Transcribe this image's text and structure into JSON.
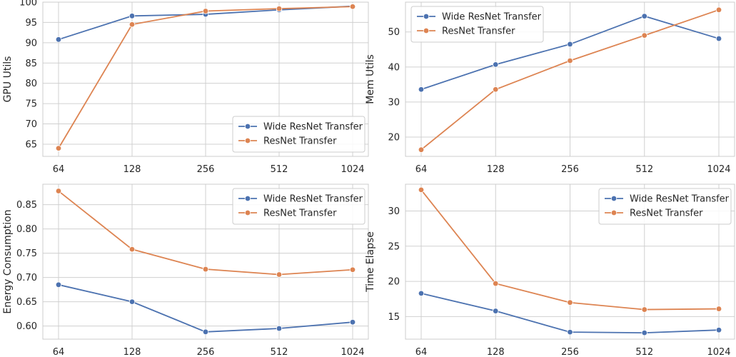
{
  "chart_data": [
    {
      "type": "line",
      "ylabel": "GPU Utils",
      "categories": [
        "64",
        "128",
        "256",
        "512",
        "1024"
      ],
      "ylim": [
        62,
        100
      ],
      "yticks": [
        65,
        70,
        75,
        80,
        85,
        90,
        95,
        100
      ],
      "ytick_labels": [
        "65",
        "70",
        "75",
        "80",
        "85",
        "90",
        "95",
        "100"
      ],
      "legend_position": "lower-right",
      "series": [
        {
          "name": "Wide ResNet Transfer",
          "color": "#4c72b0",
          "values": [
            90.8,
            96.6,
            97.0,
            98.1,
            99.0
          ]
        },
        {
          "name": "ResNet Transfer",
          "color": "#dd8452",
          "values": [
            64.0,
            94.5,
            97.8,
            98.4,
            98.9
          ]
        }
      ]
    },
    {
      "type": "line",
      "ylabel": "Mem Utils",
      "categories": [
        "64",
        "128",
        "256",
        "512",
        "1024"
      ],
      "ylim": [
        14.5,
        58.5
      ],
      "yticks": [
        20,
        30,
        40,
        50
      ],
      "ytick_labels": [
        "20",
        "30",
        "40",
        "50"
      ],
      "legend_position": "upper-left",
      "series": [
        {
          "name": "Wide ResNet Transfer",
          "color": "#4c72b0",
          "values": [
            33.6,
            40.7,
            46.5,
            54.5,
            48.1
          ]
        },
        {
          "name": "ResNet Transfer",
          "color": "#dd8452",
          "values": [
            16.4,
            33.6,
            41.8,
            49.0,
            56.3
          ]
        }
      ]
    },
    {
      "type": "line",
      "ylabel": "Energy Consumption",
      "categories": [
        "64",
        "128",
        "256",
        "512",
        "1024"
      ],
      "ylim": [
        0.573,
        0.892
      ],
      "yticks": [
        0.6,
        0.65,
        0.7,
        0.75,
        0.8,
        0.85
      ],
      "ytick_labels": [
        "0.60",
        "0.65",
        "0.70",
        "0.75",
        "0.80",
        "0.85"
      ],
      "legend_position": "upper-right",
      "series": [
        {
          "name": "Wide ResNet Transfer",
          "color": "#4c72b0",
          "values": [
            0.685,
            0.65,
            0.588,
            0.595,
            0.608
          ]
        },
        {
          "name": "ResNet Transfer",
          "color": "#dd8452",
          "values": [
            0.878,
            0.758,
            0.717,
            0.706,
            0.716
          ]
        }
      ]
    },
    {
      "type": "line",
      "ylabel": "Time Elapse",
      "categories": [
        "64",
        "128",
        "256",
        "512",
        "1024"
      ],
      "ylim": [
        11.8,
        33.8
      ],
      "yticks": [
        15,
        20,
        25,
        30
      ],
      "ytick_labels": [
        "15",
        "20",
        "25",
        "30"
      ],
      "legend_position": "upper-right",
      "series": [
        {
          "name": "Wide ResNet Transfer",
          "color": "#4c72b0",
          "values": [
            18.3,
            15.8,
            12.8,
            12.7,
            13.1
          ]
        },
        {
          "name": "ResNet Transfer",
          "color": "#dd8452",
          "values": [
            33.0,
            19.7,
            17.0,
            16.0,
            16.1
          ]
        }
      ]
    }
  ]
}
